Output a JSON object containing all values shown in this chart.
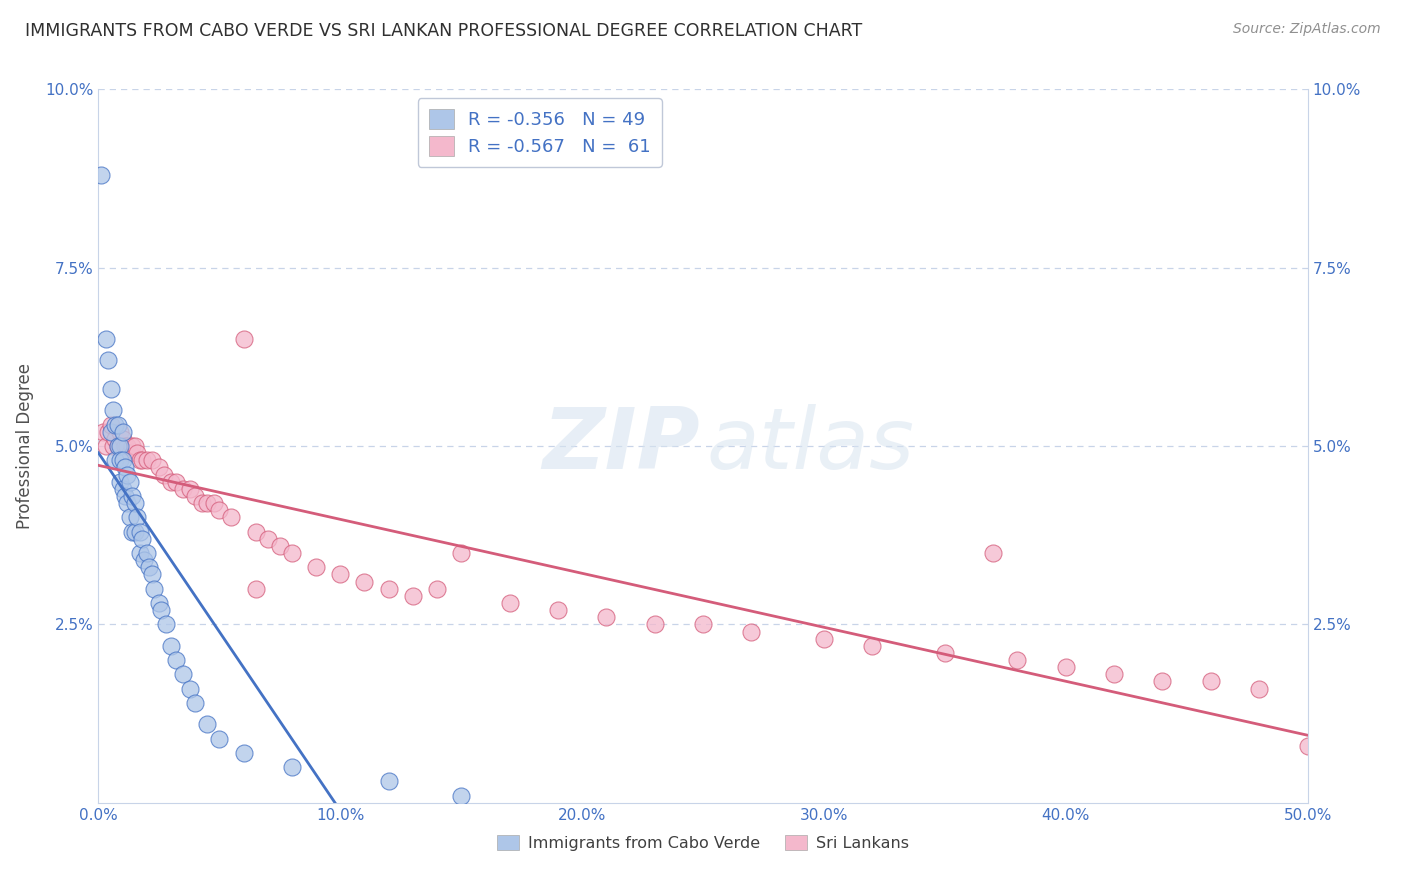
{
  "title": "IMMIGRANTS FROM CABO VERDE VS SRI LANKAN PROFESSIONAL DEGREE CORRELATION CHART",
  "source": "Source: ZipAtlas.com",
  "ylabel": "Professional Degree",
  "xlim": [
    0.0,
    0.5
  ],
  "ylim": [
    0.0,
    0.1
  ],
  "xtick_vals": [
    0.0,
    0.1,
    0.2,
    0.3,
    0.4,
    0.5
  ],
  "xticklabels": [
    "0.0%",
    "10.0%",
    "20.0%",
    "30.0%",
    "40.0%",
    "50.0%"
  ],
  "ytick_vals": [
    0.0,
    0.025,
    0.05,
    0.075,
    0.1
  ],
  "yticklabels": [
    "",
    "2.5%",
    "5.0%",
    "7.5%",
    "10.0%"
  ],
  "legend_line1": "R = -0.356   N = 49",
  "legend_line2": "R = -0.567   N =  61",
  "color_blue": "#aec6e8",
  "color_pink": "#f4b8cc",
  "line_color_blue": "#4472c4",
  "line_color_pink": "#d45c7a",
  "legend_label1": "Immigrants from Cabo Verde",
  "legend_label2": "Sri Lankans",
  "cabo_verde_x": [
    0.001,
    0.003,
    0.004,
    0.005,
    0.005,
    0.006,
    0.007,
    0.007,
    0.008,
    0.008,
    0.009,
    0.009,
    0.009,
    0.01,
    0.01,
    0.01,
    0.011,
    0.011,
    0.012,
    0.012,
    0.013,
    0.013,
    0.014,
    0.014,
    0.015,
    0.015,
    0.016,
    0.017,
    0.017,
    0.018,
    0.019,
    0.02,
    0.021,
    0.022,
    0.023,
    0.025,
    0.026,
    0.028,
    0.03,
    0.032,
    0.035,
    0.038,
    0.04,
    0.045,
    0.05,
    0.06,
    0.08,
    0.12,
    0.15
  ],
  "cabo_verde_y": [
    0.088,
    0.065,
    0.062,
    0.058,
    0.052,
    0.055,
    0.053,
    0.048,
    0.053,
    0.05,
    0.05,
    0.048,
    0.045,
    0.052,
    0.048,
    0.044,
    0.047,
    0.043,
    0.046,
    0.042,
    0.045,
    0.04,
    0.043,
    0.038,
    0.042,
    0.038,
    0.04,
    0.038,
    0.035,
    0.037,
    0.034,
    0.035,
    0.033,
    0.032,
    0.03,
    0.028,
    0.027,
    0.025,
    0.022,
    0.02,
    0.018,
    0.016,
    0.014,
    0.011,
    0.009,
    0.007,
    0.005,
    0.003,
    0.001
  ],
  "sri_lanka_x": [
    0.002,
    0.003,
    0.004,
    0.005,
    0.006,
    0.007,
    0.008,
    0.009,
    0.01,
    0.011,
    0.012,
    0.013,
    0.014,
    0.015,
    0.016,
    0.017,
    0.018,
    0.02,
    0.022,
    0.025,
    0.027,
    0.03,
    0.032,
    0.035,
    0.038,
    0.04,
    0.043,
    0.045,
    0.048,
    0.05,
    0.055,
    0.06,
    0.065,
    0.07,
    0.075,
    0.08,
    0.09,
    0.1,
    0.11,
    0.12,
    0.13,
    0.15,
    0.17,
    0.19,
    0.21,
    0.23,
    0.25,
    0.27,
    0.3,
    0.32,
    0.35,
    0.37,
    0.38,
    0.4,
    0.42,
    0.44,
    0.46,
    0.48,
    0.5,
    0.14,
    0.065
  ],
  "sri_lanka_y": [
    0.052,
    0.05,
    0.052,
    0.053,
    0.05,
    0.051,
    0.05,
    0.052,
    0.051,
    0.05,
    0.05,
    0.049,
    0.05,
    0.05,
    0.049,
    0.048,
    0.048,
    0.048,
    0.048,
    0.047,
    0.046,
    0.045,
    0.045,
    0.044,
    0.044,
    0.043,
    0.042,
    0.042,
    0.042,
    0.041,
    0.04,
    0.065,
    0.038,
    0.037,
    0.036,
    0.035,
    0.033,
    0.032,
    0.031,
    0.03,
    0.029,
    0.035,
    0.028,
    0.027,
    0.026,
    0.025,
    0.025,
    0.024,
    0.023,
    0.022,
    0.021,
    0.035,
    0.02,
    0.019,
    0.018,
    0.017,
    0.017,
    0.016,
    0.008,
    0.03,
    0.03
  ],
  "watermark_zip": "ZIP",
  "watermark_atlas": "atlas",
  "background_color": "#ffffff",
  "grid_color": "#c8d4e8",
  "tick_color": "#4472c4",
  "title_color": "#303030",
  "source_color": "#909090"
}
